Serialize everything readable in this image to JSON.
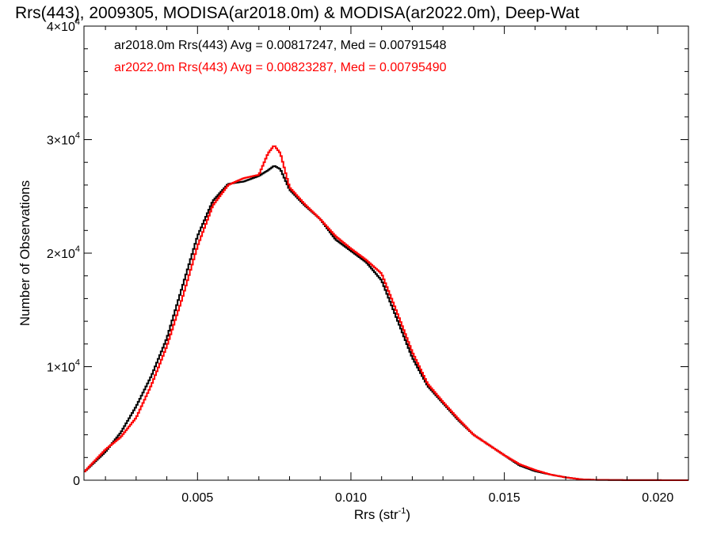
{
  "chart_data": {
    "type": "line",
    "title": "Rrs(443), 2009305, MODISA(ar2018.0m) & MODISA(ar2022.0m), Deep-Wat",
    "xlabel": "Rrs (str",
    "xlabel_sup": "-1",
    "xlabel_end": ")",
    "ylabel": "Number of Observations",
    "xlim": [
      0.0013,
      0.021
    ],
    "ylim": [
      0,
      40000
    ],
    "x_ticks": [
      {
        "value": 0.005,
        "label": "0.005"
      },
      {
        "value": 0.01,
        "label": "0.010"
      },
      {
        "value": 0.015,
        "label": "0.015"
      },
      {
        "value": 0.02,
        "label": "0.020"
      }
    ],
    "y_ticks": [
      {
        "value": 0,
        "mant": "0",
        "exp": ""
      },
      {
        "value": 10000,
        "mant": "1×10",
        "exp": "4"
      },
      {
        "value": 20000,
        "mant": "2×10",
        "exp": "4"
      },
      {
        "value": 30000,
        "mant": "3×10",
        "exp": "4"
      },
      {
        "value": 40000,
        "mant": "4×10",
        "exp": "4"
      }
    ],
    "legend": {
      "placement": "top-left",
      "entries": [
        "ar2018.0m Rrs(443) Avg = 0.00817247, Med = 0.00791548",
        "ar2022.0m Rrs(443) Avg = 0.00823287, Med = 0.00795490"
      ]
    },
    "series": [
      {
        "name": "ar2018.0m",
        "color": "#000000",
        "points": [
          [
            0.0013,
            700
          ],
          [
            0.002,
            2500
          ],
          [
            0.0025,
            4200
          ],
          [
            0.003,
            6500
          ],
          [
            0.0035,
            9200
          ],
          [
            0.004,
            12500
          ],
          [
            0.0045,
            17000
          ],
          [
            0.005,
            21500
          ],
          [
            0.0055,
            24600
          ],
          [
            0.006,
            26100
          ],
          [
            0.0065,
            26300
          ],
          [
            0.007,
            26800
          ],
          [
            0.0073,
            27300
          ],
          [
            0.0075,
            27700
          ],
          [
            0.0077,
            27400
          ],
          [
            0.008,
            25600
          ],
          [
            0.0085,
            24200
          ],
          [
            0.009,
            23000
          ],
          [
            0.0095,
            21200
          ],
          [
            0.01,
            20200
          ],
          [
            0.0105,
            19200
          ],
          [
            0.011,
            17600
          ],
          [
            0.0115,
            14200
          ],
          [
            0.012,
            10800
          ],
          [
            0.0125,
            8300
          ],
          [
            0.013,
            6800
          ],
          [
            0.0135,
            5300
          ],
          [
            0.014,
            4000
          ],
          [
            0.0145,
            3100
          ],
          [
            0.015,
            2200
          ],
          [
            0.0155,
            1300
          ],
          [
            0.016,
            800
          ],
          [
            0.0165,
            500
          ],
          [
            0.017,
            250
          ],
          [
            0.0175,
            80
          ],
          [
            0.018,
            30
          ],
          [
            0.019,
            10
          ],
          [
            0.021,
            0
          ]
        ]
      },
      {
        "name": "ar2022.0m",
        "color": "#ff0000",
        "points": [
          [
            0.0013,
            700
          ],
          [
            0.002,
            2700
          ],
          [
            0.0025,
            3800
          ],
          [
            0.003,
            5500
          ],
          [
            0.0035,
            8400
          ],
          [
            0.004,
            11800
          ],
          [
            0.0045,
            16000
          ],
          [
            0.005,
            20600
          ],
          [
            0.0055,
            24200
          ],
          [
            0.006,
            26000
          ],
          [
            0.0065,
            26600
          ],
          [
            0.007,
            26900
          ],
          [
            0.0073,
            28800
          ],
          [
            0.0075,
            29500
          ],
          [
            0.0077,
            28800
          ],
          [
            0.008,
            25800
          ],
          [
            0.0085,
            24300
          ],
          [
            0.009,
            23000
          ],
          [
            0.0095,
            21500
          ],
          [
            0.01,
            20400
          ],
          [
            0.0105,
            19400
          ],
          [
            0.011,
            18200
          ],
          [
            0.0115,
            14800
          ],
          [
            0.012,
            11300
          ],
          [
            0.0125,
            8500
          ],
          [
            0.013,
            6900
          ],
          [
            0.0135,
            5400
          ],
          [
            0.014,
            4000
          ],
          [
            0.0145,
            3100
          ],
          [
            0.015,
            2200
          ],
          [
            0.0155,
            1400
          ],
          [
            0.016,
            900
          ],
          [
            0.0165,
            500
          ],
          [
            0.017,
            250
          ],
          [
            0.0175,
            80
          ],
          [
            0.018,
            30
          ],
          [
            0.019,
            10
          ],
          [
            0.021,
            0
          ]
        ]
      }
    ]
  }
}
